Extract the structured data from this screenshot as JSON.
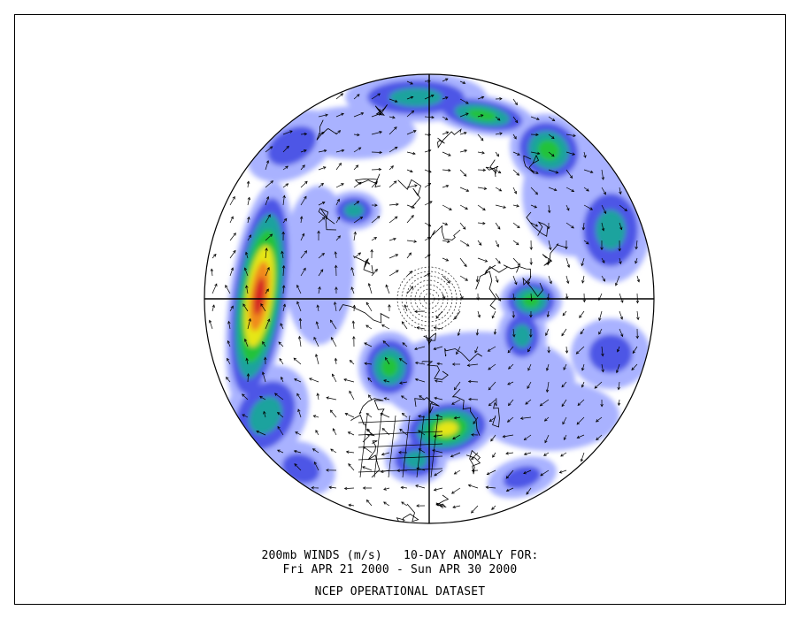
{
  "caption": {
    "line1": "200mb WINDS (m/s)   10-DAY ANOMALY FOR:",
    "line2": "Fri APR 21 2000 - Sun APR 30 2000",
    "line3": "NCEP OPERATIONAL DATASET"
  },
  "map": {
    "projection": "polar-stereographic-north",
    "field": "200mb wind anomaly speed",
    "palette": {
      "light": "#a9b2ff",
      "blue": "#4d57e6",
      "teal": "#1aa39e",
      "green": "#22c23a",
      "yellow": "#e6e617",
      "orange": "#f08a1a",
      "red": "#d42020"
    }
  }
}
